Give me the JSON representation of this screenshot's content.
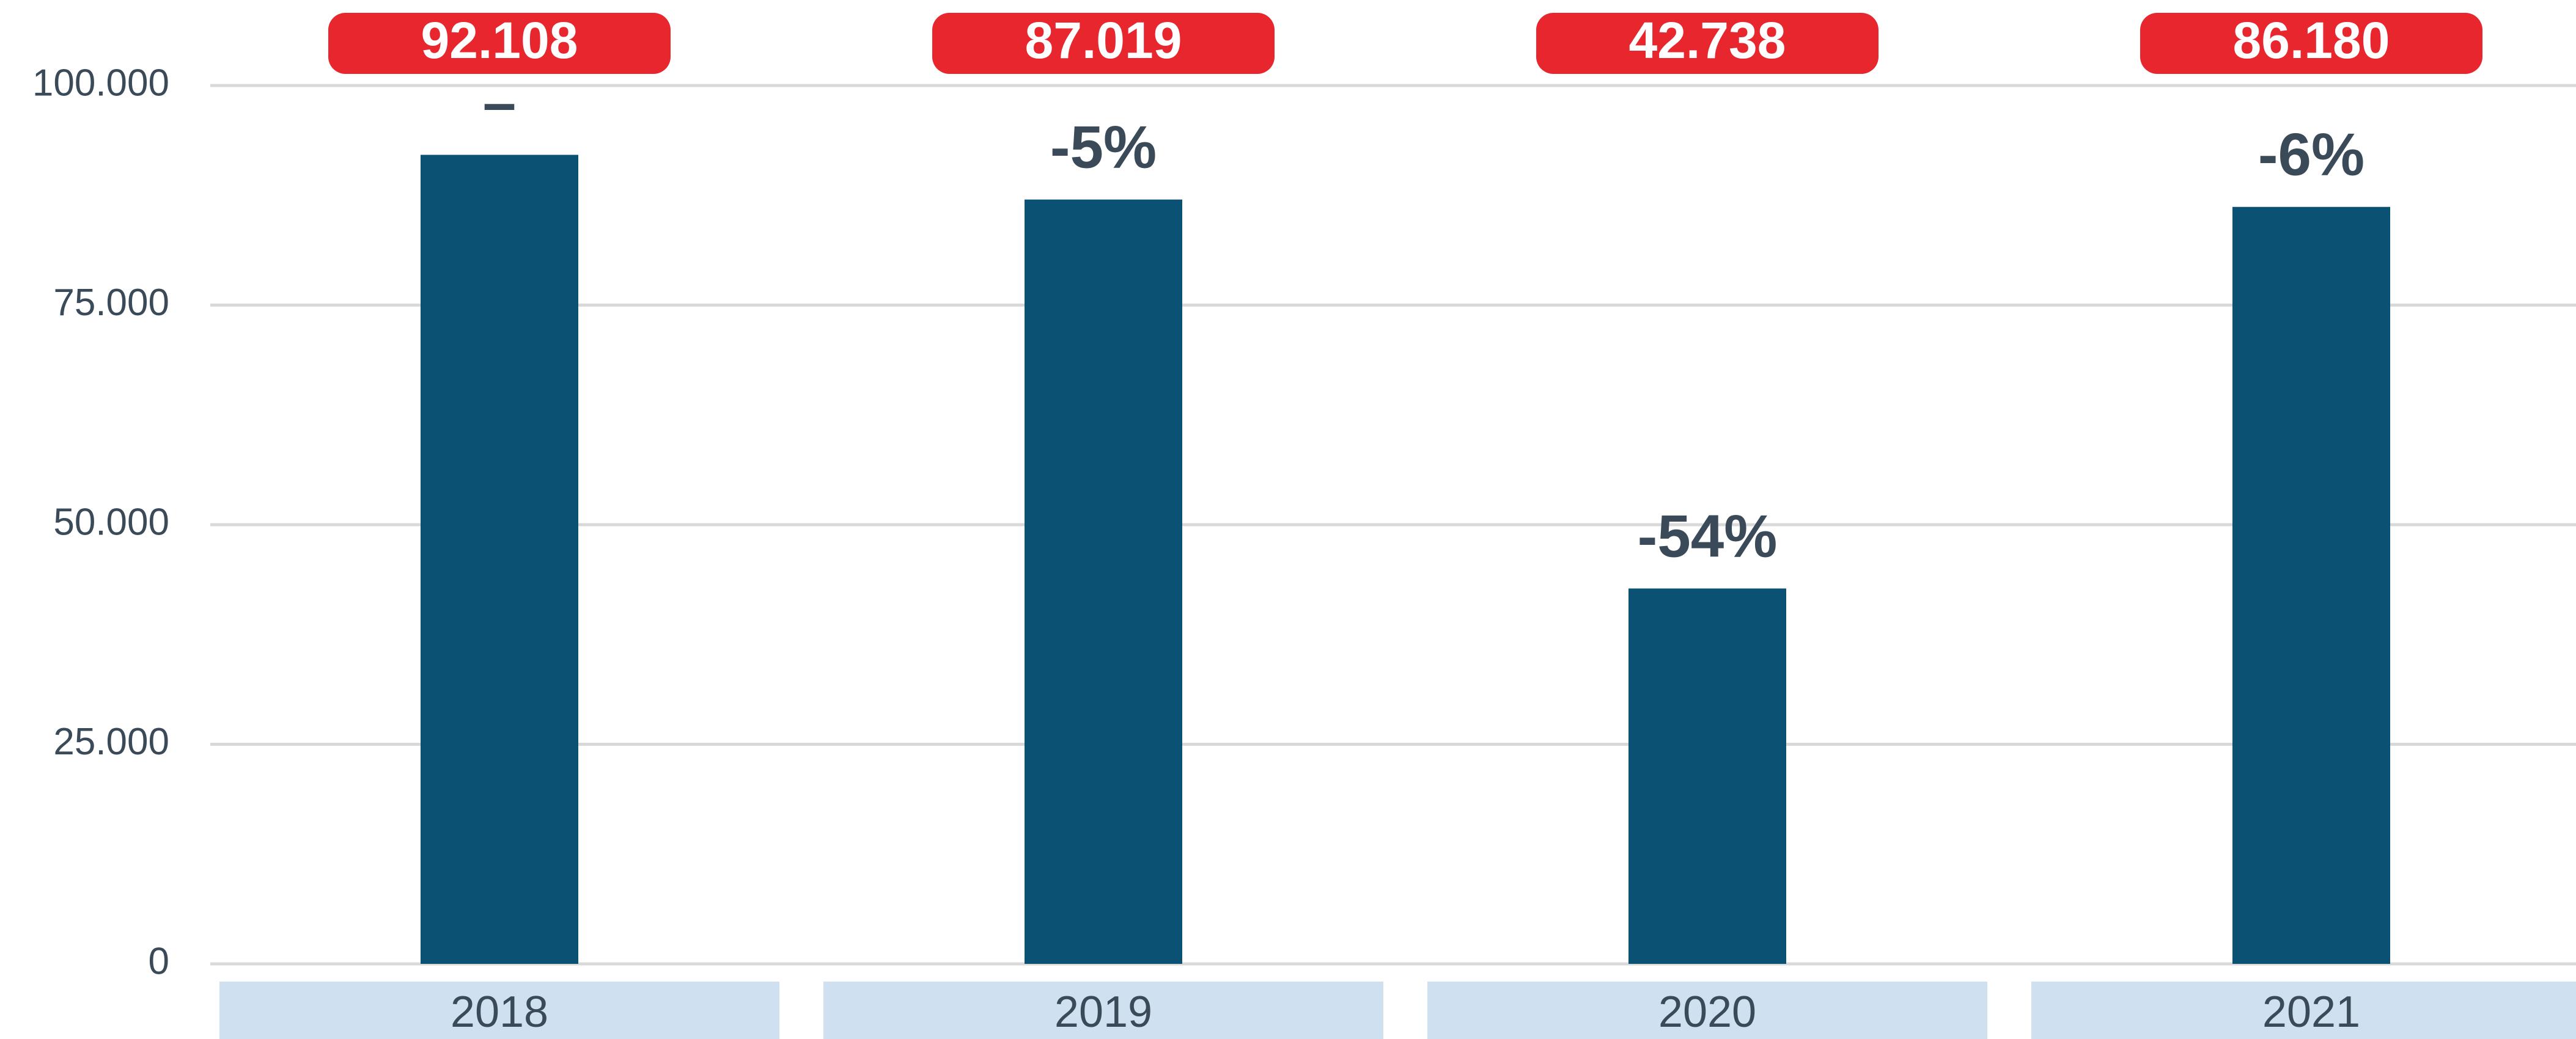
{
  "chart_data": {
    "type": "bar",
    "categories": [
      "2018",
      "2019",
      "2020",
      "2021"
    ],
    "values": [
      92108,
      87019,
      42738,
      86180
    ],
    "value_labels": [
      "92.108",
      "87.019",
      "42.738",
      "86.180"
    ],
    "change_labels": [
      "–",
      "-5%",
      "-54%",
      "-6%"
    ],
    "color": "#0b5173",
    "label_color": "#e8262e",
    "ylim": [
      0,
      100000
    ],
    "yticks": [
      0,
      {
        "value": 25000,
        "label": "25.000"
      },
      {
        "value": 50000,
        "label": "50.000"
      },
      {
        "value": 75000,
        "label": "75.000"
      },
      {
        "value": 100000,
        "label": "100.000"
      }
    ],
    "grid": true
  }
}
